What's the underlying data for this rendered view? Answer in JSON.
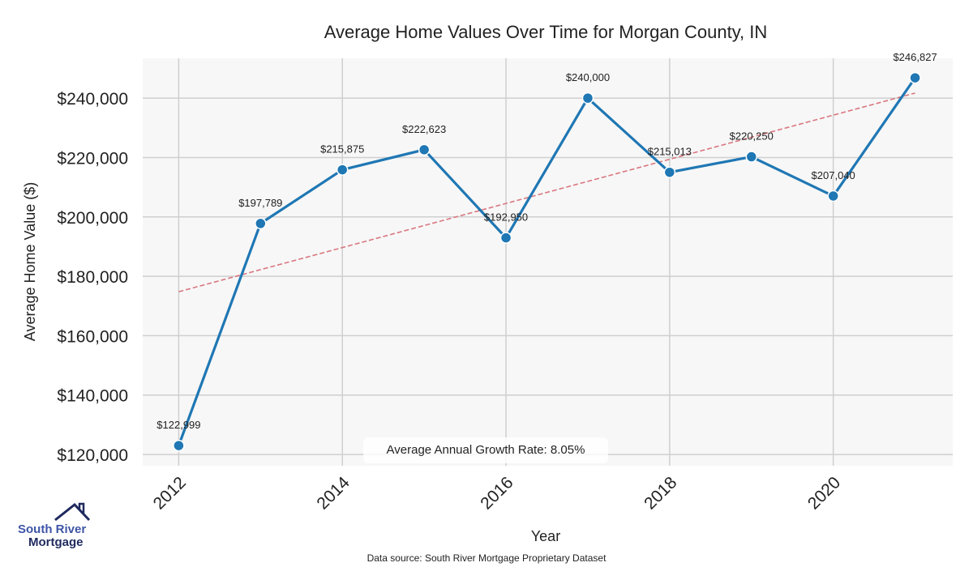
{
  "chart_data": {
    "type": "line",
    "title": "Average Home Values Over Time for Morgan County, IN",
    "xlabel": "Year",
    "ylabel": "Average Home Value ($)",
    "x": [
      2012,
      2013,
      2014,
      2015,
      2016,
      2017,
      2018,
      2019,
      2020,
      2021
    ],
    "series": [
      {
        "name": "Average Home Value",
        "values": [
          122999,
          197789,
          215875,
          222623,
          192950,
          240000,
          215013,
          220250,
          207040,
          246827
        ],
        "color": "#1f77b4"
      },
      {
        "name": "Trend",
        "x": [
          2012,
          2021
        ],
        "values": [
          174800,
          241700
        ],
        "color": "#d9777f",
        "style": "dashed"
      }
    ],
    "data_labels": [
      "$122,999",
      "$197,789",
      "$215,875",
      "$222,623",
      "$192,950",
      "$240,000",
      "$215,013",
      "$220,250",
      "$207,040",
      "$246,827"
    ],
    "xticks": [
      2012,
      2014,
      2016,
      2018,
      2020
    ],
    "xtick_labels": [
      "2012",
      "2014",
      "2016",
      "2018",
      "2020"
    ],
    "yticks": [
      120000,
      140000,
      160000,
      180000,
      200000,
      220000,
      240000
    ],
    "ytick_labels": [
      "$120,000",
      "$140,000",
      "$160,000",
      "$180,000",
      "$200,000",
      "$220,000",
      "$240,000"
    ],
    "xlim": [
      2011.56,
      2021.46
    ],
    "ylim": [
      116200,
      253400
    ],
    "grid": true,
    "annotation": "Average Annual Growth Rate: 8.05%",
    "source": "Data source: South River Mortgage Proprietary Dataset"
  },
  "logo": {
    "line1": "South River",
    "line2": "Mortgage"
  }
}
